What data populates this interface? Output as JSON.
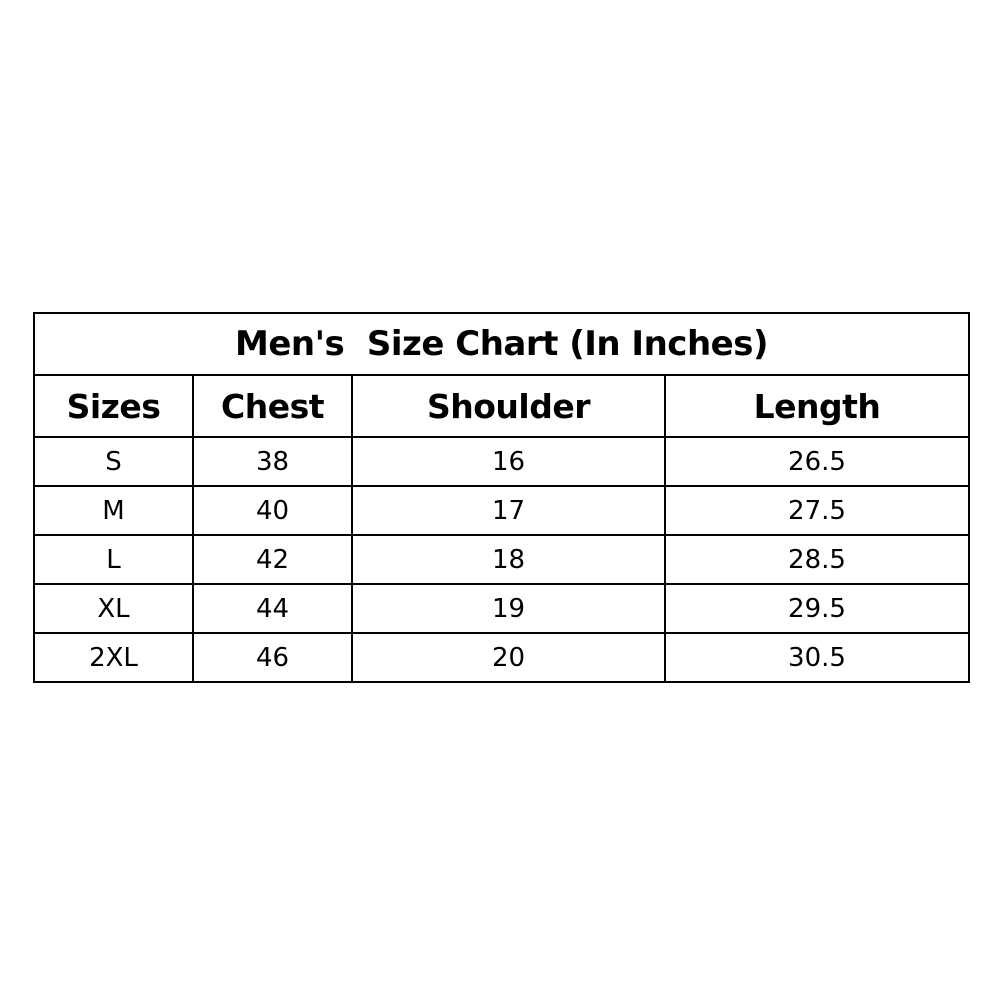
{
  "title": "Men's  Size Chart (In Inches)",
  "columns": [
    "Sizes",
    "Chest",
    "Shoulder",
    "Length"
  ],
  "rows": [
    [
      "S",
      "38",
      "16",
      "26.5"
    ],
    [
      "M",
      "40",
      "17",
      "27.5"
    ],
    [
      "L",
      "42",
      "18",
      "28.5"
    ],
    [
      "XL",
      "44",
      "19",
      "29.5"
    ],
    [
      "2XL",
      "46",
      "20",
      "30.5"
    ]
  ]
}
